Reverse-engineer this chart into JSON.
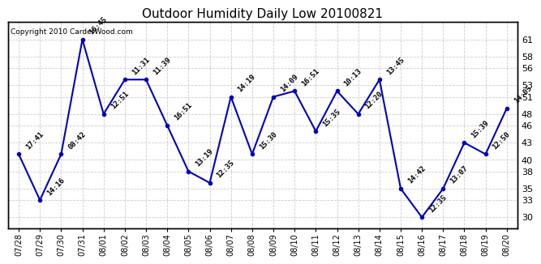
{
  "title": "Outdoor Humidity Daily Low 20100821",
  "copyright": "Copyright 2010 CarderWood.com",
  "x_labels": [
    "07/28",
    "07/29",
    "07/30",
    "07/31",
    "08/01",
    "08/02",
    "08/03",
    "08/04",
    "08/05",
    "08/06",
    "08/07",
    "08/08",
    "08/09",
    "08/10",
    "08/11",
    "08/12",
    "08/13",
    "08/14",
    "08/15",
    "08/16",
    "08/17",
    "08/18",
    "08/19",
    "08/20"
  ],
  "y_values": [
    41,
    33,
    41,
    61,
    48,
    54,
    54,
    46,
    38,
    36,
    51,
    41,
    51,
    52,
    45,
    52,
    48,
    54,
    35,
    30,
    35,
    43,
    41,
    49
  ],
  "annotations": [
    "17:41",
    "14:16",
    "08:42",
    "16:45",
    "12:51",
    "11:31",
    "11:39",
    "16:51",
    "13:19",
    "12:35",
    "14:19",
    "15:30",
    "14:09",
    "16:51",
    "15:35",
    "10:13",
    "12:20",
    "13:45",
    "14:42",
    "12:35",
    "13:07",
    "15:39",
    "12:50",
    "14:05"
  ],
  "line_color": "#0000bb",
  "marker_color": "#0000bb",
  "marker_style": "o",
  "marker_size": 3,
  "line_width": 1.5,
  "ylim": [
    28,
    64
  ],
  "yticks": [
    30,
    33,
    35,
    38,
    40,
    43,
    46,
    48,
    51,
    53,
    56,
    58,
    61
  ],
  "grid_color": "#cccccc",
  "grid_linestyle": "--",
  "bg_color": "#ffffff",
  "title_fontsize": 11,
  "annotation_fontsize": 6.5,
  "annotation_color": "#000000",
  "copyright_fontsize": 6.5,
  "copyright_color": "#000000",
  "ytick_fontsize": 8,
  "xtick_fontsize": 7
}
